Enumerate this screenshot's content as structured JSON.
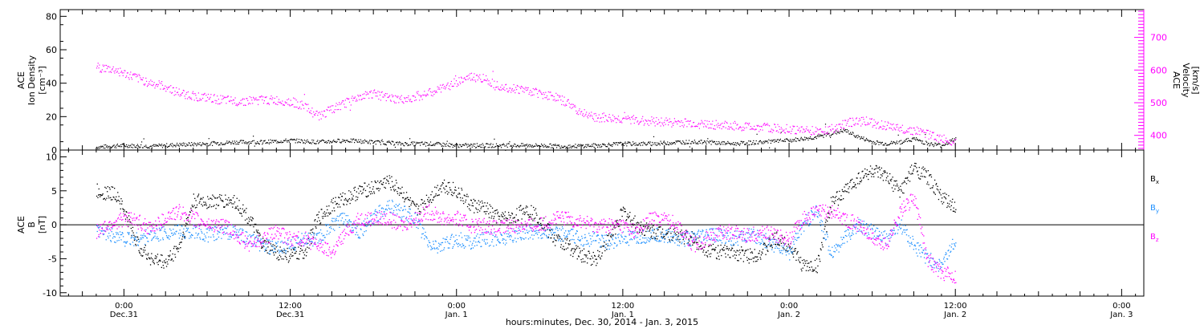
{
  "colors": {
    "black": "#000000",
    "magenta": "#ff00ff",
    "blue": "#1e90ff"
  },
  "chart_data": [
    {
      "type": "scatter",
      "panel": "top",
      "ylabel_left": [
        "ACE",
        "Ion Density",
        "[cm⁻³]"
      ],
      "ylabel_right": [
        "ACE",
        "Velocity",
        "[km/s]"
      ],
      "yticks_left": [
        "0",
        "20",
        "40",
        "60",
        "80"
      ],
      "yticks_right": [
        "400",
        "500",
        "600",
        "700"
      ],
      "ylim_left": [
        0,
        84
      ],
      "ylim_right": [
        355,
        785
      ],
      "x_hours_since_dec30": [
        -2,
        64
      ],
      "series": [
        {
          "name": "Ion Density",
          "axis": "left",
          "color": "#000000",
          "x": [
            -2,
            0,
            2,
            4,
            6,
            8,
            10,
            12,
            14,
            16,
            18,
            20,
            22,
            24,
            26,
            28,
            30,
            32,
            34,
            36,
            38,
            40,
            42,
            44,
            46,
            48,
            50,
            52,
            53,
            54,
            55,
            56,
            57,
            58,
            59,
            60
          ],
          "y": [
            2,
            3,
            2.5,
            3.5,
            4,
            5,
            5,
            6,
            5,
            6,
            5,
            4,
            4,
            3,
            3,
            3,
            3,
            2.5,
            3,
            4,
            4,
            5,
            5,
            4,
            5,
            6,
            8,
            12,
            8,
            5,
            4,
            5,
            7,
            4,
            3,
            7
          ]
        },
        {
          "name": "Velocity",
          "axis": "right",
          "color": "#ff00ff",
          "x": [
            -2,
            -0.5,
            0,
            1,
            2,
            3,
            4,
            6,
            8,
            10,
            12,
            13,
            14,
            15,
            16,
            17,
            18,
            19,
            20,
            21,
            22,
            23,
            24,
            25,
            26,
            27,
            28,
            29,
            30,
            31,
            32,
            33,
            34,
            36,
            38,
            40,
            42,
            44,
            46,
            48,
            50,
            51,
            52,
            53,
            54,
            55,
            56,
            57,
            58,
            59,
            60
          ],
          "y": [
            610,
            600,
            590,
            575,
            560,
            550,
            530,
            515,
            505,
            510,
            505,
            490,
            460,
            480,
            500,
            520,
            530,
            515,
            510,
            520,
            530,
            545,
            565,
            580,
            575,
            555,
            545,
            540,
            530,
            520,
            500,
            470,
            455,
            450,
            445,
            440,
            435,
            430,
            425,
            420,
            415,
            420,
            435,
            450,
            440,
            430,
            420,
            415,
            405,
            390,
            380
          ]
        }
      ]
    },
    {
      "type": "scatter",
      "panel": "bottom",
      "ylabel_left": [
        "ACE",
        "B",
        "[nT]"
      ],
      "yticks": [
        "-10",
        "-5",
        "0",
        "5",
        "10"
      ],
      "ylim": [
        -10.5,
        11
      ],
      "zero_line": true,
      "x_hours_since_dec30": [
        -2,
        64
      ],
      "legend_position": "right",
      "series": [
        {
          "name": "Bx",
          "color": "#000000",
          "x": [
            -2,
            -0.5,
            0,
            1,
            2,
            3,
            4,
            5,
            6,
            8,
            9,
            10,
            11,
            12,
            13,
            14,
            15,
            16,
            17,
            18,
            19,
            20,
            21,
            22,
            23,
            24,
            25,
            26,
            27,
            28,
            29,
            30,
            31,
            32,
            33,
            34,
            35,
            36,
            37,
            38,
            39,
            40,
            41,
            42,
            43,
            44,
            45,
            46,
            47,
            48,
            49,
            50,
            51,
            52,
            53,
            54,
            55,
            56,
            57,
            58,
            59,
            60
          ],
          "y": [
            5,
            4.5,
            2,
            -3,
            -5,
            -5.5,
            -3,
            3.5,
            3.5,
            3.5,
            1,
            -3,
            -4,
            -4.5,
            -4,
            1,
            3,
            4,
            5,
            5.5,
            6.5,
            5,
            2,
            4,
            6,
            5,
            3,
            2.5,
            1,
            1,
            2.5,
            1,
            -2,
            -3,
            -4.5,
            -5,
            -2,
            2,
            0,
            -1,
            -1,
            -1.5,
            -2,
            -3.5,
            -4,
            -4,
            -4.5,
            -4,
            -2,
            -3,
            -6,
            -6,
            3,
            5,
            7,
            8,
            7,
            5,
            8.5,
            7,
            4,
            2.5
          ]
        },
        {
          "name": "By",
          "color": "#1e90ff",
          "x": [
            -2,
            -0.5,
            0,
            1,
            2,
            3,
            4,
            5,
            6,
            7,
            8,
            9,
            10,
            11,
            12,
            13,
            14,
            15,
            16,
            17,
            18,
            19,
            20,
            21,
            22,
            23,
            24,
            25,
            26,
            27,
            28,
            29,
            30,
            31,
            32,
            33,
            34,
            35,
            36,
            37,
            38,
            39,
            40,
            41,
            42,
            43,
            44,
            45,
            46,
            47,
            48,
            49,
            50,
            51,
            52,
            53,
            54,
            55,
            56,
            57,
            58,
            59,
            60
          ],
          "y": [
            -1,
            -1.5,
            -2,
            -2,
            -1.5,
            -1,
            -1,
            -1,
            -1.5,
            -1,
            -1,
            -2,
            -3,
            -3.5,
            -3,
            -2,
            -2,
            0,
            1,
            -1,
            1,
            3,
            2,
            1,
            -3,
            -3,
            -2,
            -2.5,
            -2,
            -2,
            -1.5,
            -1,
            -1,
            -1,
            -1.5,
            -2,
            -2,
            -2.5,
            -2,
            -2,
            -1.5,
            -1.5,
            -2,
            -2,
            -1.5,
            -1.5,
            -2,
            -1.5,
            -2,
            -3,
            -4,
            0,
            2,
            -4,
            -2,
            0,
            -1,
            -2,
            0,
            -3,
            -5,
            -6,
            -2
          ]
        },
        {
          "name": "Bz",
          "color": "#ff00ff",
          "x": [
            -2,
            -0.5,
            0,
            1,
            2,
            3,
            4,
            5,
            6,
            7,
            8,
            9,
            10,
            11,
            12,
            13,
            14,
            15,
            16,
            17,
            18,
            19,
            20,
            21,
            22,
            23,
            24,
            25,
            26,
            27,
            28,
            29,
            30,
            31,
            32,
            33,
            34,
            35,
            36,
            37,
            38,
            39,
            40,
            41,
            42,
            43,
            44,
            45,
            46,
            47,
            48,
            49,
            50,
            51,
            52,
            53,
            54,
            55,
            56,
            57,
            58,
            59,
            60
          ],
          "y": [
            -1,
            0.5,
            1,
            0.5,
            -0.5,
            1,
            2,
            1,
            0,
            0,
            -1,
            -3,
            -2,
            -1,
            -2,
            -2,
            -3,
            -4,
            -1,
            1,
            1,
            1,
            0,
            1,
            2,
            1,
            1,
            0,
            0,
            -0.5,
            0,
            0,
            0,
            1,
            1,
            0.5,
            0,
            0,
            0,
            -1,
            1,
            1,
            0,
            -3,
            -2,
            -1,
            -1,
            -1.5,
            -1,
            -1.5,
            -2,
            1,
            2,
            2,
            1,
            0,
            -2,
            -3,
            2,
            4,
            -5,
            -7,
            -7.5
          ]
        }
      ],
      "legend": [
        {
          "label": "B",
          "sub": "x"
        },
        {
          "label": "B",
          "sub": "y"
        },
        {
          "label": "B",
          "sub": "z"
        }
      ]
    }
  ],
  "x_axis": {
    "ticks": [
      {
        "hours": 0,
        "time": "0:00",
        "day": "Dec.31"
      },
      {
        "hours": 12,
        "time": "12:00",
        "day": "Dec.31"
      },
      {
        "hours": 24,
        "time": "0:00",
        "day": "Jan. 1"
      },
      {
        "hours": 36,
        "time": "12:00",
        "day": "Jan. 1"
      },
      {
        "hours": 48,
        "time": "0:00",
        "day": "Jan. 2"
      },
      {
        "hours": 60,
        "time": "12:00",
        "day": "Jan. 2"
      },
      {
        "hours": 72,
        "time": "0:00",
        "day": "Jan. 3"
      }
    ],
    "xlim_hours": [
      -4.6,
      73.6
    ],
    "label": "hours:minutes, Dec. 30, 2014 - Jan.  3, 2015"
  }
}
